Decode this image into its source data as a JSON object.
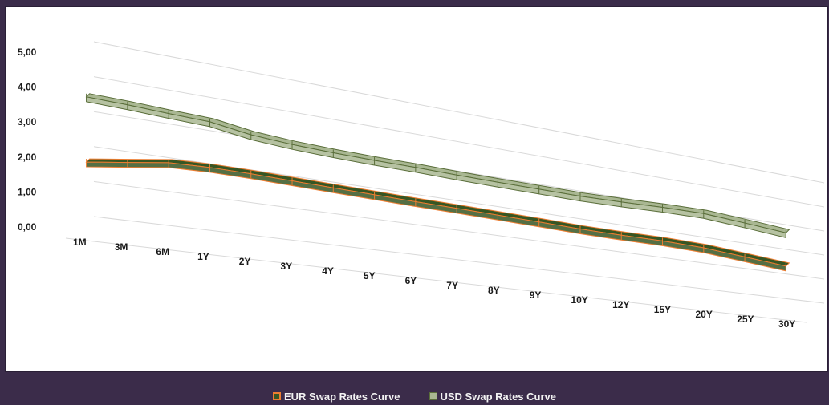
{
  "chart_data": {
    "type": "line",
    "title": "",
    "xlabel": "",
    "ylabel": "",
    "categories": [
      "1M",
      "3M",
      "6M",
      "1Y",
      "2Y",
      "3Y",
      "4Y",
      "5Y",
      "6Y",
      "7Y",
      "8Y",
      "9Y",
      "10Y",
      "12Y",
      "15Y",
      "20Y",
      "25Y",
      "30Y"
    ],
    "yticks": [
      "0,00",
      "1,00",
      "2,00",
      "3,00",
      "4,00",
      "5,00"
    ],
    "ylim": [
      0,
      5
    ],
    "grid": true,
    "legend_position": "bottom",
    "series": [
      {
        "name": "EUR Swap Rates Curve",
        "values": [
          1.94,
          2.1,
          2.27,
          2.31,
          2.3,
          2.27,
          2.24,
          2.21,
          2.18,
          2.16,
          2.13,
          2.1,
          2.06,
          2.05,
          2.06,
          2.02,
          1.89,
          1.75
        ],
        "color": "#375623",
        "edge_color": "#ed7d31"
      },
      {
        "name": "USD Swap Rates Curve",
        "values": [
          3.82,
          3.79,
          3.74,
          3.7,
          3.51,
          3.42,
          3.37,
          3.34,
          3.33,
          3.3,
          3.28,
          3.27,
          3.26,
          3.29,
          3.34,
          3.36,
          3.25,
          3.12
        ],
        "color": "#a9b792",
        "edge_color": "#5a6e3a"
      }
    ]
  }
}
